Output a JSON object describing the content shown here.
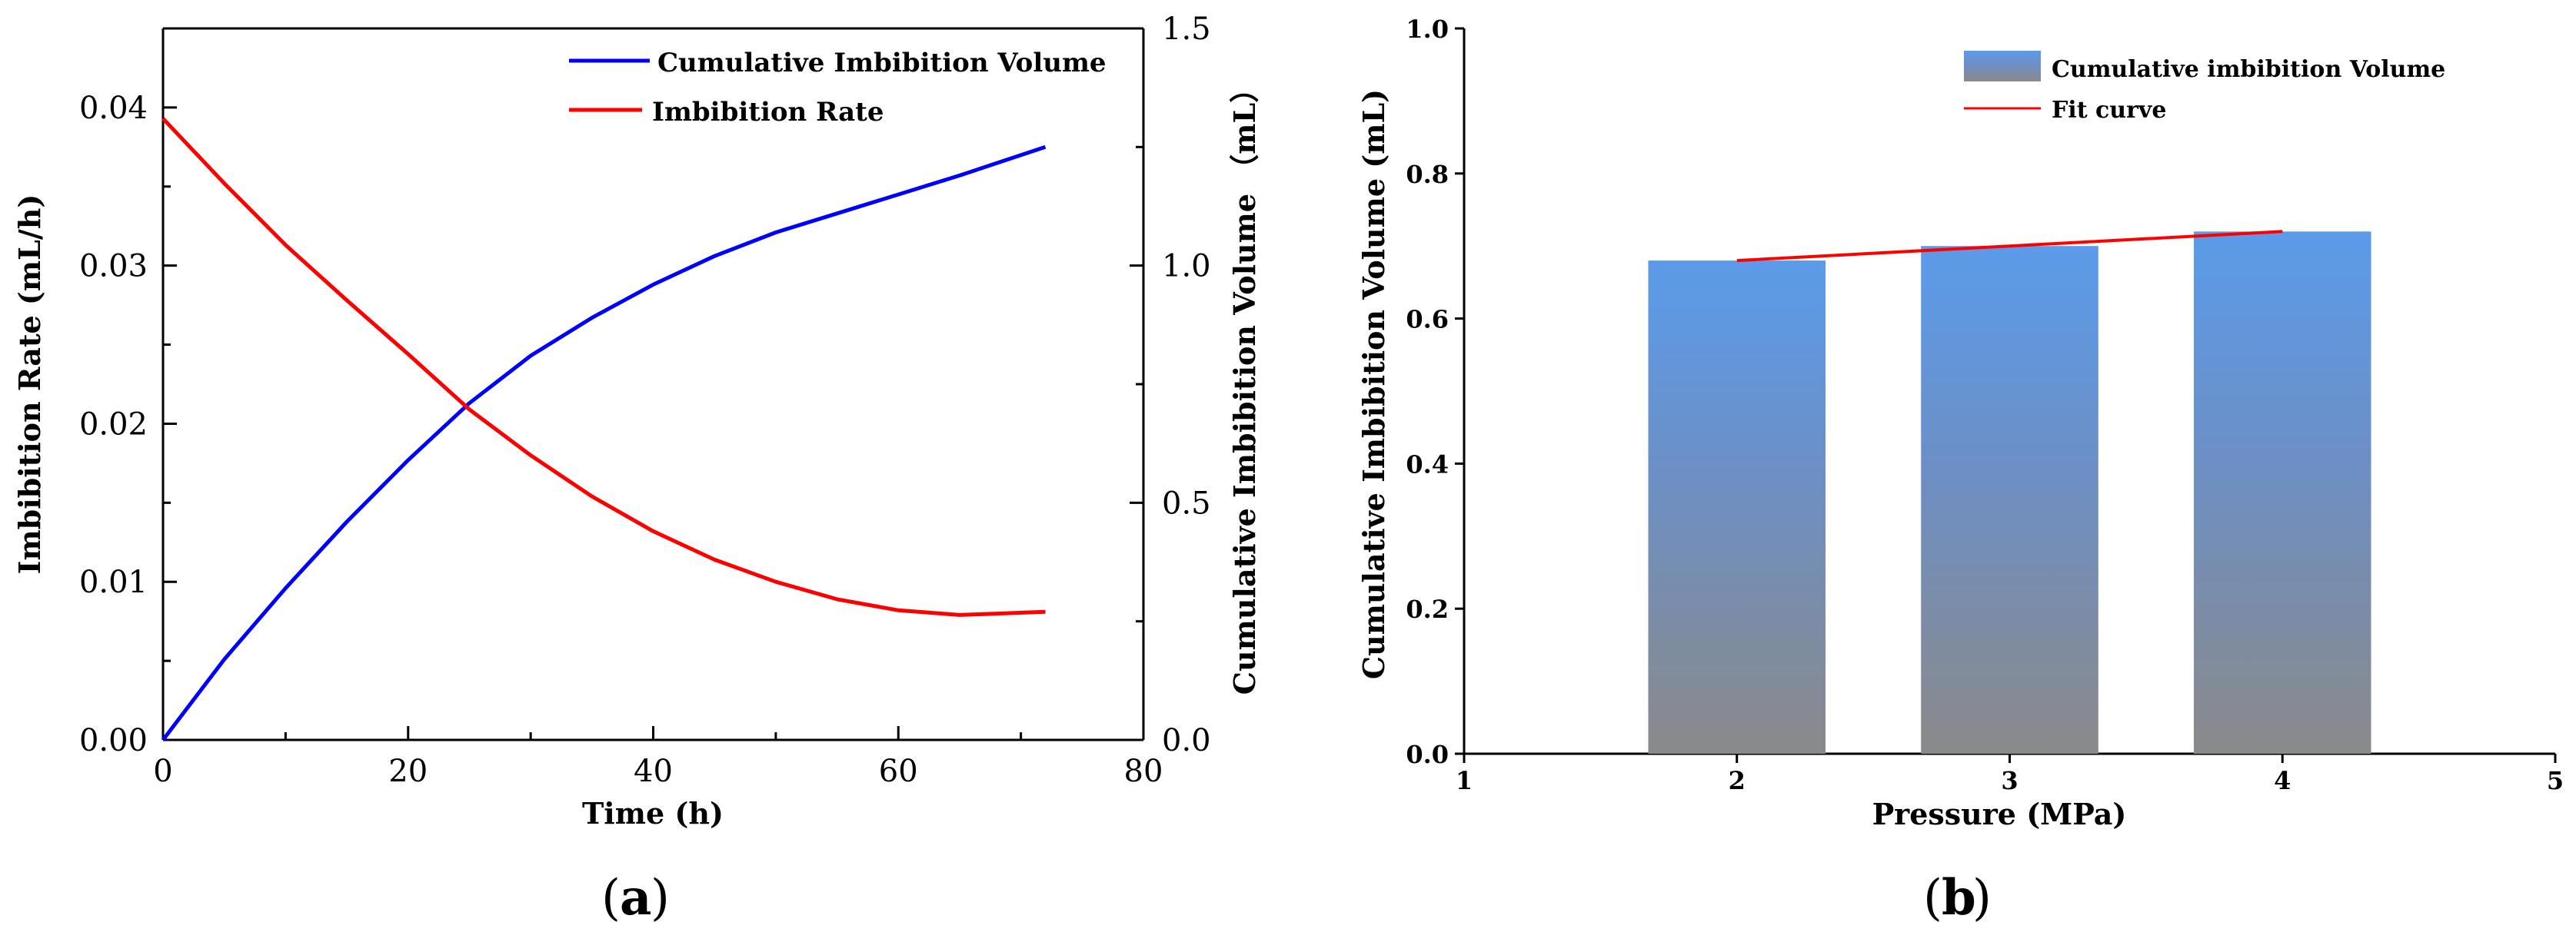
{
  "chart_data": [
    {
      "type": "line",
      "panel_label": "a",
      "xlabel": "Time (h)",
      "ylabel_left": "Imbibition Rate (mL/h)",
      "ylabel_right": "Cumulative Imbibition Volume （mL）",
      "xlim": [
        0,
        80
      ],
      "ylim_left": [
        0,
        0.045
      ],
      "ylim_right": [
        0,
        1.5
      ],
      "xticks": [
        "0",
        "20",
        "40",
        "60",
        "80"
      ],
      "yticks_left": [
        "0.00",
        "0.01",
        "0.02",
        "0.03",
        "0.04"
      ],
      "yticks_right": [
        "0.0",
        "0.5",
        "1.0",
        "1.5"
      ],
      "legend_position": "top-right",
      "series": [
        {
          "name": "Cumulative Imbibition Volume",
          "axis": "right",
          "color": "#0000ff",
          "x": [
            0,
            5,
            10,
            15,
            20,
            25,
            30,
            35,
            40,
            45,
            50,
            55,
            60,
            65,
            72
          ],
          "y": [
            0.0,
            0.17,
            0.32,
            0.46,
            0.59,
            0.71,
            0.81,
            0.89,
            0.96,
            1.02,
            1.07,
            1.11,
            1.15,
            1.19,
            1.25
          ]
        },
        {
          "name": "Imbibition Rate",
          "axis": "left",
          "color": "#ff0000",
          "x": [
            0,
            5,
            10,
            15,
            20,
            25,
            30,
            35,
            40,
            45,
            50,
            55,
            60,
            65,
            72
          ],
          "y": [
            0.0393,
            0.0352,
            0.0313,
            0.0278,
            0.0244,
            0.0209,
            0.018,
            0.0154,
            0.0132,
            0.0114,
            0.01,
            0.0089,
            0.0082,
            0.0079,
            0.0081
          ]
        }
      ]
    },
    {
      "type": "bar",
      "panel_label": "b",
      "xlabel": "Pressure (MPa)",
      "ylabel": "Cumulative Imbibition Volume (mL)",
      "xlim": [
        1,
        5
      ],
      "ylim": [
        0,
        1.0
      ],
      "xticks": [
        "1",
        "2",
        "3",
        "4",
        "5"
      ],
      "yticks": [
        "0.0",
        "0.2",
        "0.4",
        "0.6",
        "0.8",
        "1.0"
      ],
      "categories": [
        "2",
        "3",
        "4"
      ],
      "x": [
        2,
        3,
        4
      ],
      "values": [
        0.68,
        0.7,
        0.72
      ],
      "bar_width_data_units": 0.65,
      "bar_gradient": [
        "#5b9bea",
        "#8a8a8a"
      ],
      "legend_position": "top-right",
      "legend": [
        {
          "name": "Cumulative imbibition Volume",
          "kind": "bar"
        },
        {
          "name": "Fit curve",
          "kind": "line",
          "color": "#ff0000"
        }
      ],
      "fit_curve": {
        "x": [
          2,
          3,
          4
        ],
        "y": [
          0.68,
          0.7,
          0.72
        ],
        "color": "#ff0000"
      }
    }
  ]
}
